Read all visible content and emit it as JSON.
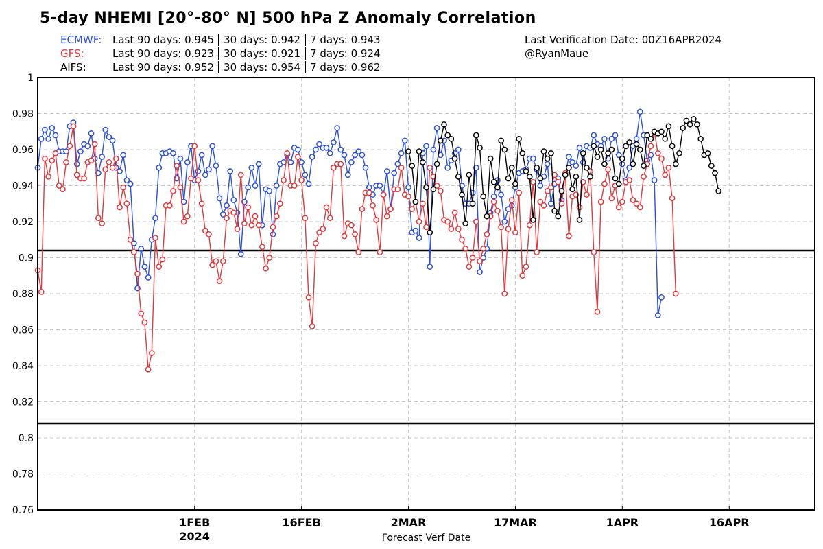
{
  "header": {
    "title": "5-day NHEMI [20°-80° N] 500 hPa Z Anomaly Correlation",
    "verification": "Last Verification Date: 00Z16APR2024",
    "handle": "@RyanMaue"
  },
  "stats": [
    {
      "model": "ECMWF:",
      "color": "#2b4fd8",
      "d90": "Last 90 days: 0.945",
      "d30": "30 days: 0.942",
      "d7": "7 days: 0.943"
    },
    {
      "model": "GFS:",
      "color": "#e0393d",
      "d90": "Last 90 days: 0.923",
      "d30": "30 days: 0.921",
      "d7": "7 days: 0.924"
    },
    {
      "model": "AIFS:",
      "color": "#000000",
      "d90": "Last 90 days: 0.952",
      "d30": "30 days: 0.954",
      "d7": "7 days: 0.962"
    }
  ],
  "chart_data": {
    "type": "line",
    "title": "5-day NHEMI [20°-80° N] 500 hPa Z Anomaly Correlation",
    "xlabel": "Forecast Verf Date",
    "ylabel": "",
    "ylim": [
      0.76,
      1.0
    ],
    "yticks": [
      0.76,
      0.78,
      0.8,
      0.82,
      0.84,
      0.86,
      0.88,
      0.9,
      0.92,
      0.94,
      0.96,
      0.98,
      1
    ],
    "ytick_labels": [
      "0.76",
      "0.78",
      "0.8",
      "0.82",
      "0.84",
      "0.86",
      "0.88",
      "0.9",
      "0.92",
      "0.94",
      "0.96",
      "0.98",
      "1"
    ],
    "xaxis_start": "2024-01-10",
    "xaxis_end": "2024-04-28",
    "x_ticks": [
      "2024-02-01",
      "2024-02-16",
      "2024-03-02",
      "2024-03-17",
      "2024-04-01",
      "2024-04-16"
    ],
    "x_tick_labels": [
      "1FEB",
      "16FEB",
      "2MAR",
      "17MAR",
      "1APR",
      "16APR"
    ],
    "x_year_label": "2024",
    "reference_lines": [
      0.904,
      0.808
    ],
    "grid": true,
    "series": [
      {
        "name": "ECMWF",
        "color": "#2b4fd8",
        "start": "2024-01-10",
        "values": [
          0.95,
          0.966,
          0.971,
          0.966,
          0.972,
          0.968,
          0.959,
          0.959,
          0.959,
          0.973,
          0.975,
          0.952,
          0.959,
          0.963,
          0.962,
          0.969,
          0.955,
          0.947,
          0.956,
          0.971,
          0.967,
          0.965,
          0.95,
          0.948,
          0.957,
          0.943,
          0.941,
          0.908,
          0.883,
          0.905,
          0.895,
          0.889,
          0.91,
          0.922,
          0.95,
          0.958,
          0.958,
          0.959,
          0.958,
          0.944,
          0.955,
          0.931,
          0.953,
          0.962,
          0.943,
          0.948,
          0.957,
          0.946,
          0.949,
          0.962,
          0.951,
          0.933,
          0.924,
          0.929,
          0.948,
          0.932,
          0.925,
          0.902,
          0.931,
          0.939,
          0.95,
          0.94,
          0.952,
          0.918,
          0.938,
          0.937,
          0.913,
          0.94,
          0.952,
          0.953,
          0.957,
          0.953,
          0.961,
          0.96,
          0.953,
          0.946,
          0.941,
          0.956,
          0.96,
          0.963,
          0.961,
          0.961,
          0.958,
          0.964,
          0.972,
          0.96,
          0.957,
          0.946,
          0.953,
          0.957,
          0.959,
          0.957,
          0.95,
          0.939,
          0.935,
          0.94,
          0.94,
          0.935,
          0.948,
          0.927,
          0.947,
          0.952,
          0.958,
          0.965,
          0.939,
          0.914,
          0.915,
          0.911,
          0.958,
          0.962,
          0.895,
          0.96,
          0.972,
          0.957,
          0.965,
          0.95,
          0.954,
          0.958,
          0.96,
          0.94,
          0.93,
          0.93,
          0.936,
          0.95,
          0.892,
          0.9,
          0.905,
          0.925,
          0.934,
          0.943,
          0.935,
          0.92,
          0.927,
          0.929,
          0.939,
          0.947,
          0.948,
          0.949,
          0.955,
          0.955,
          0.949,
          0.94,
          0.945,
          0.952,
          0.93,
          0.941,
          0.944,
          0.932,
          0.946,
          0.956,
          0.953,
          0.951,
          0.961,
          0.953,
          0.962,
          0.961,
          0.968,
          0.963,
          0.962,
          0.966,
          0.955,
          0.966,
          0.968,
          0.957,
          0.952,
          0.943,
          0.95,
          0.962,
          0.966,
          0.981,
          0.968,
          0.954,
          0.957,
          0.943,
          0.868,
          0.878
        ]
      },
      {
        "name": "GFS",
        "color": "#e0393d",
        "start": "2024-01-10",
        "values": [
          0.893,
          0.881,
          0.955,
          0.945,
          0.954,
          0.958,
          0.94,
          0.938,
          0.953,
          0.962,
          0.973,
          0.946,
          0.944,
          0.944,
          0.953,
          0.954,
          0.963,
          0.922,
          0.919,
          0.949,
          0.953,
          0.95,
          0.955,
          0.928,
          0.939,
          0.93,
          0.91,
          0.903,
          0.891,
          0.869,
          0.864,
          0.838,
          0.847,
          0.911,
          0.895,
          0.899,
          0.929,
          0.929,
          0.937,
          0.951,
          0.939,
          0.92,
          0.923,
          0.944,
          0.962,
          0.943,
          0.93,
          0.915,
          0.913,
          0.896,
          0.898,
          0.887,
          0.898,
          0.922,
          0.926,
          0.925,
          0.916,
          0.946,
          0.919,
          0.928,
          0.918,
          0.923,
          0.918,
          0.906,
          0.894,
          0.9,
          0.917,
          0.923,
          0.93,
          0.943,
          0.958,
          0.94,
          0.94,
          0.956,
          0.943,
          0.922,
          0.878,
          0.862,
          0.908,
          0.914,
          0.916,
          0.928,
          0.922,
          0.95,
          0.952,
          0.952,
          0.912,
          0.919,
          0.918,
          0.913,
          0.903,
          0.927,
          0.936,
          0.936,
          0.929,
          0.921,
          0.903,
          0.935,
          0.923,
          0.927,
          0.938,
          0.938,
          0.95,
          0.935,
          0.934,
          0.927,
          0.931,
          0.92,
          0.93,
          0.917,
          0.95,
          0.945,
          0.94,
          0.937,
          0.921,
          0.92,
          0.916,
          0.925,
          0.916,
          0.91,
          0.905,
          0.895,
          0.9,
          0.92,
          0.898,
          0.905,
          0.913,
          0.923,
          0.931,
          0.926,
          0.917,
          0.88,
          0.916,
          0.932,
          0.914,
          0.936,
          0.89,
          0.895,
          0.918,
          0.942,
          0.903,
          0.931,
          0.929,
          0.937,
          0.939,
          0.946,
          0.942,
          0.93,
          0.947,
          0.912,
          0.934,
          0.935,
          0.928,
          0.942,
          0.935,
          0.948,
          0.903,
          0.87,
          0.931,
          0.941,
          0.949,
          0.933,
          0.94,
          0.928,
          0.931,
          0.942,
          0.943,
          0.932,
          0.93,
          0.928,
          0.945,
          0.952,
          0.962,
          0.97,
          0.958,
          0.955,
          0.946,
          0.95,
          0.933,
          0.88
        ]
      },
      {
        "name": "AIFS",
        "color": "#000000",
        "start": "2024-03-02",
        "values": [
          0.959,
          0.951,
          0.931,
          0.959,
          0.953,
          0.939,
          0.914,
          0.938,
          0.952,
          0.965,
          0.974,
          0.968,
          0.966,
          0.955,
          0.945,
          0.935,
          0.919,
          0.946,
          0.93,
          0.968,
          0.961,
          0.934,
          0.923,
          0.955,
          0.942,
          0.939,
          0.965,
          0.96,
          0.944,
          0.95,
          0.941,
          0.966,
          0.958,
          0.948,
          0.945,
          0.921,
          0.95,
          0.944,
          0.959,
          0.955,
          0.958,
          0.926,
          0.923,
          0.937,
          0.946,
          0.95,
          0.938,
          0.945,
          0.921,
          0.958,
          0.95,
          0.945,
          0.962,
          0.956,
          0.96,
          0.952,
          0.958,
          0.96,
          0.944,
          0.941,
          0.955,
          0.962,
          0.964,
          0.952,
          0.963,
          0.96,
          0.951,
          0.968,
          0.966,
          0.97,
          0.969,
          0.97,
          0.966,
          0.973,
          0.962,
          0.952,
          0.958,
          0.972,
          0.976,
          0.974,
          0.977,
          0.974,
          0.966,
          0.957,
          0.958,
          0.951,
          0.947,
          0.937
        ]
      }
    ]
  }
}
